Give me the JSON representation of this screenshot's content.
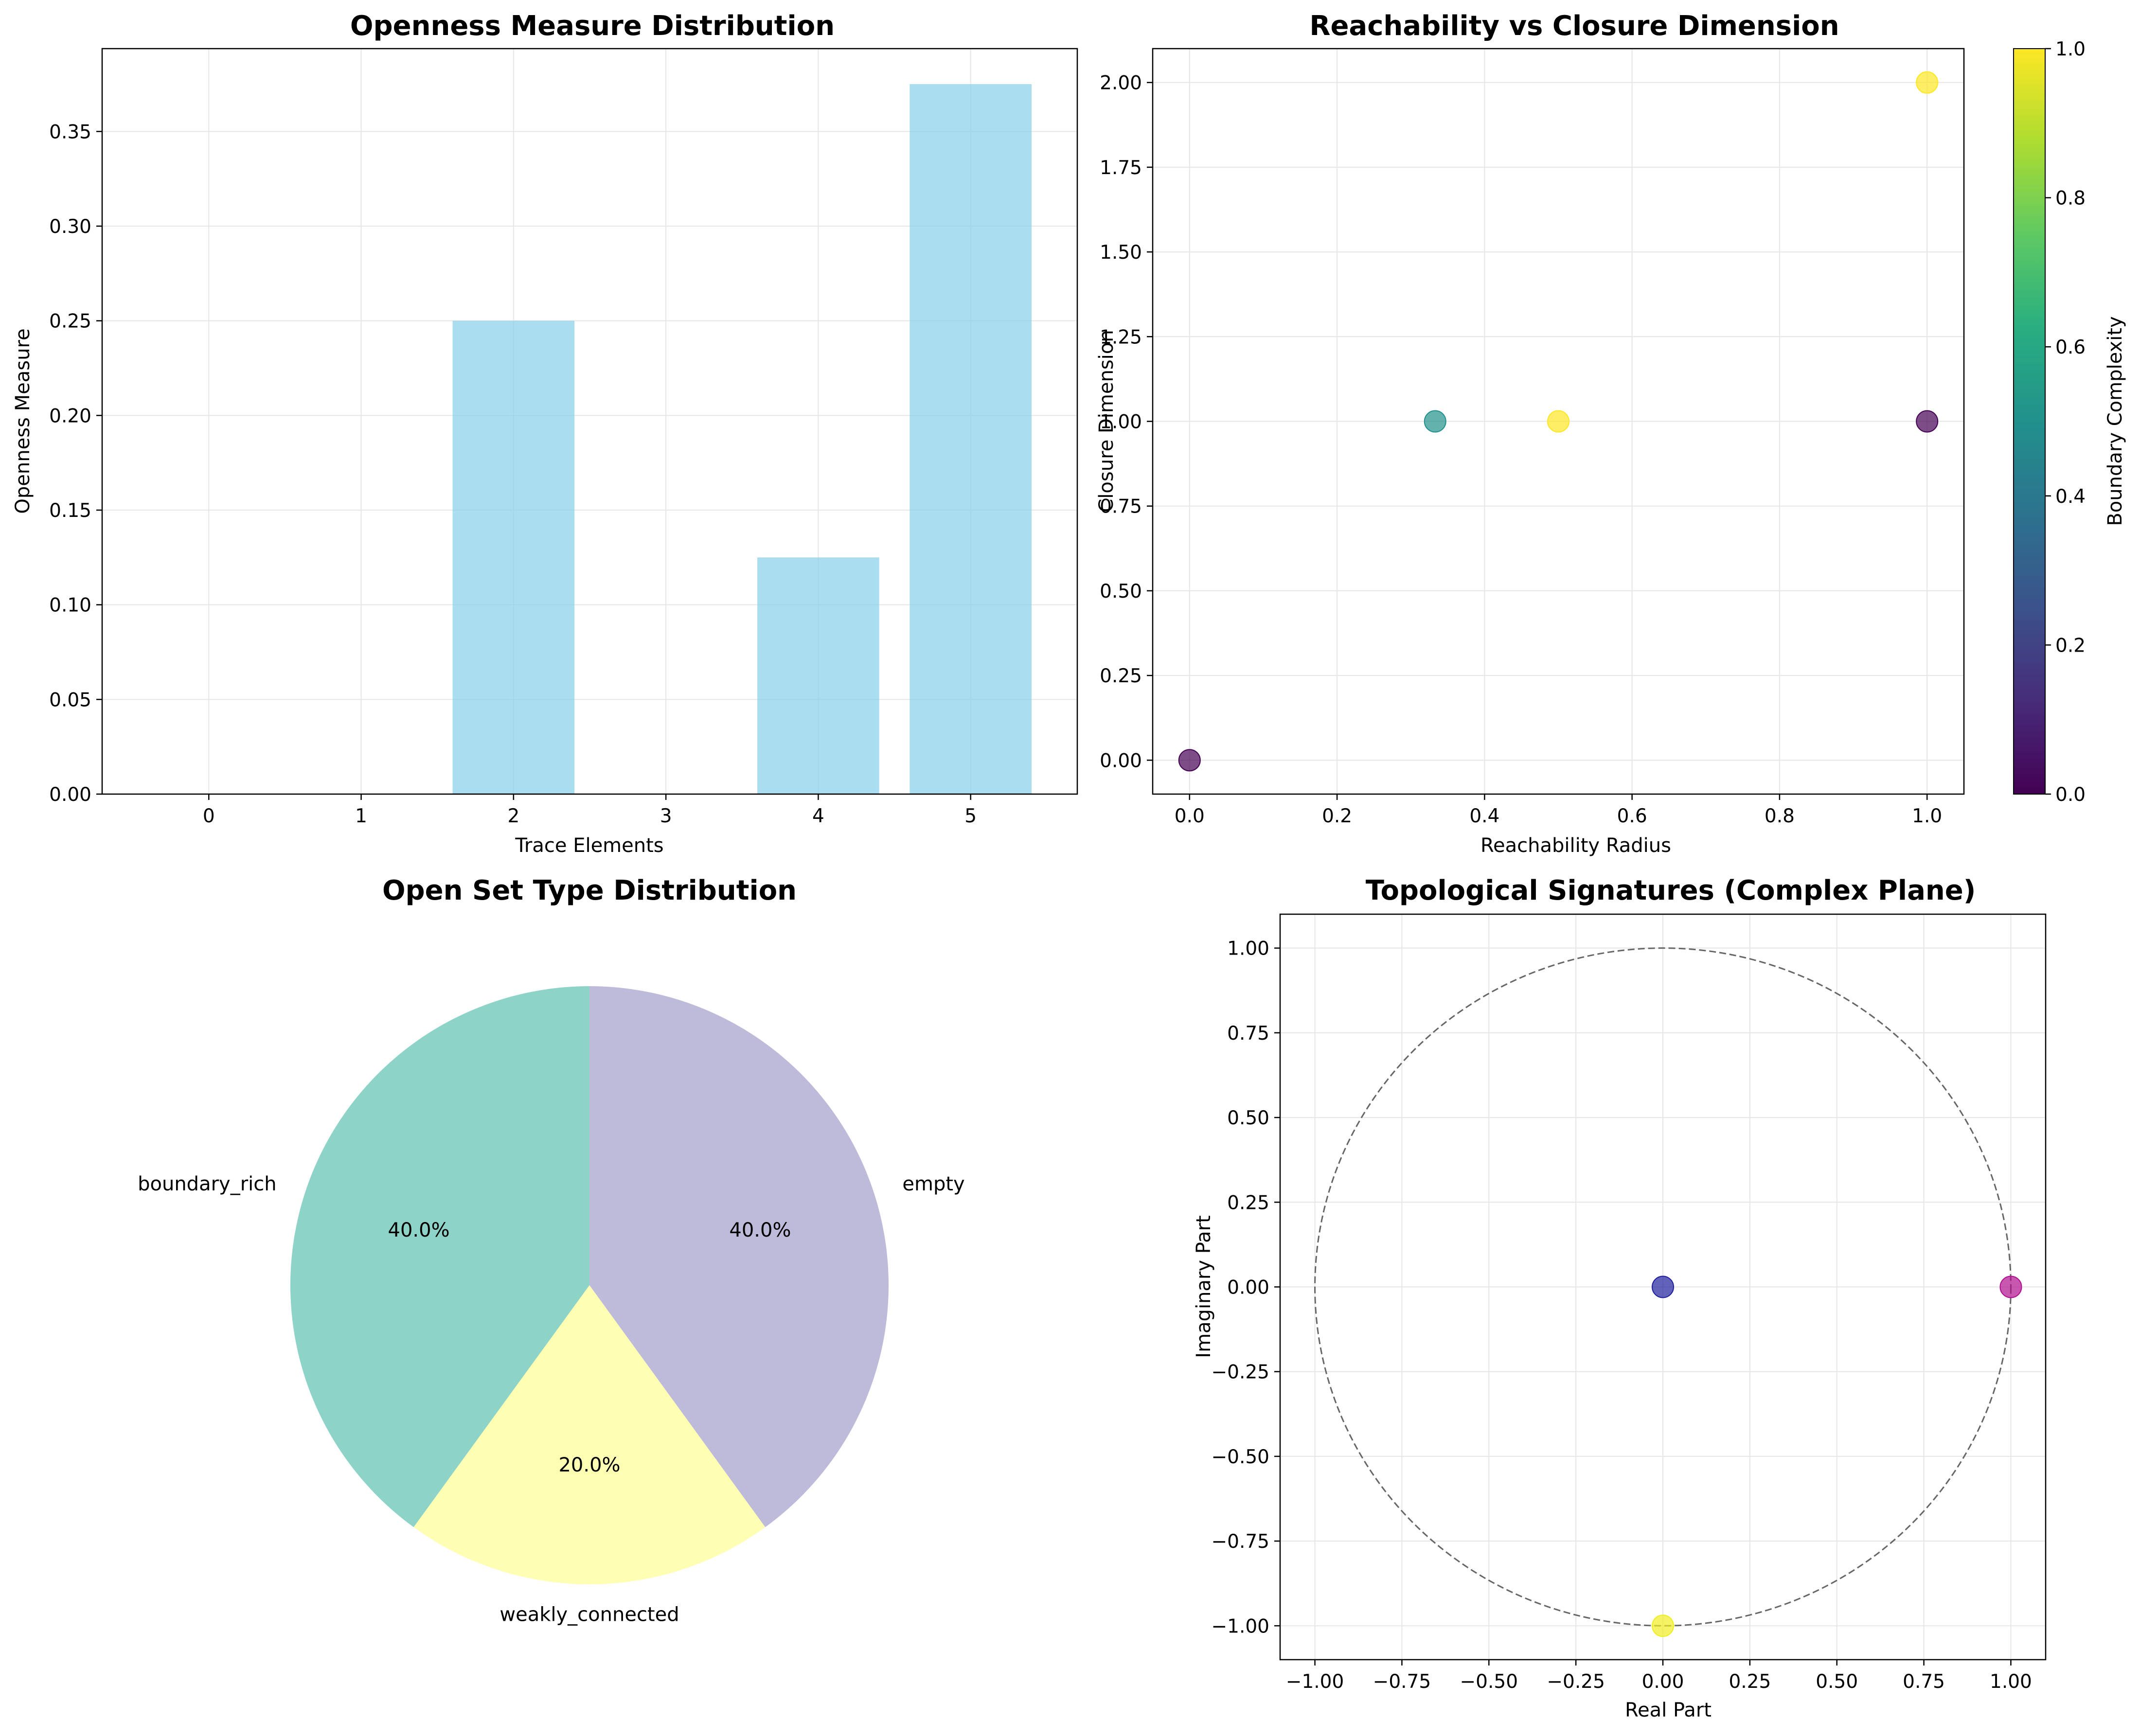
{
  "chart_data": [
    {
      "type": "bar",
      "title": "Openness Measure Distribution",
      "xlabel": "Trace Elements",
      "ylabel": "Openness Measure",
      "categories": [
        "0",
        "1",
        "2",
        "3",
        "4",
        "5"
      ],
      "values": [
        0,
        0,
        0.25,
        0,
        0.125,
        0.375
      ],
      "ylim": [
        0,
        0.39375
      ],
      "xlim": [
        -0.7,
        5.7
      ],
      "yticks": [
        "0.00",
        "0.05",
        "0.10",
        "0.15",
        "0.20",
        "0.25",
        "0.30",
        "0.35"
      ],
      "bar_color": "#87ceeb",
      "grid": true
    },
    {
      "type": "scatter",
      "title": "Reachability vs Closure Dimension",
      "xlabel": "Reachability Radius",
      "ylabel": "Closure Dimension",
      "colorbar_label": "Boundary Complexity",
      "points": [
        {
          "x": 0.0,
          "y": 0.0,
          "c": 0.0
        },
        {
          "x": 0.333,
          "y": 1.0,
          "c": 0.5
        },
        {
          "x": 0.5,
          "y": 1.0,
          "c": 1.0
        },
        {
          "x": 1.0,
          "y": 1.0,
          "c": 0.0
        },
        {
          "x": 1.0,
          "y": 2.0,
          "c": 1.0
        }
      ],
      "xlim": [
        -0.05,
        1.05
      ],
      "ylim": [
        -0.1,
        2.1
      ],
      "xticks": [
        "0.0",
        "0.2",
        "0.4",
        "0.6",
        "0.8",
        "1.0"
      ],
      "yticks": [
        "0.00",
        "0.25",
        "0.50",
        "0.75",
        "1.00",
        "1.25",
        "1.50",
        "1.75",
        "2.00"
      ],
      "colorbar_ticks": [
        "0.0",
        "0.2",
        "0.4",
        "0.6",
        "0.8",
        "1.0"
      ],
      "colormap": "viridis",
      "grid": true
    },
    {
      "type": "pie",
      "title": "Open Set Type Distribution",
      "slices": [
        {
          "label": "boundary_rich",
          "value": 40.0,
          "pct": "40.0%",
          "color": "#8dd3c7"
        },
        {
          "label": "weakly_connected",
          "value": 20.0,
          "pct": "20.0%",
          "color": "#ffffb3"
        },
        {
          "label": "empty",
          "value": 40.0,
          "pct": "40.0%",
          "color": "#bebada"
        }
      ]
    },
    {
      "type": "scatter",
      "title": "Topological Signatures (Complex Plane)",
      "xlabel": "Real Part",
      "ylabel": "Imaginary Part",
      "points": [
        {
          "x": 0.0,
          "y": 0.0,
          "color": "#1f1f9e"
        },
        {
          "x": 1.0,
          "y": 0.0,
          "color": "#b0108f"
        },
        {
          "x": 0.0,
          "y": -1.0,
          "color": "#eeee22"
        }
      ],
      "unit_circle": true,
      "xlim": [
        -1.1,
        1.1
      ],
      "ylim": [
        -1.1,
        1.1
      ],
      "xticks": [
        "−1.00",
        "−0.75",
        "−0.50",
        "−0.25",
        "0.00",
        "0.25",
        "0.50",
        "0.75",
        "1.00"
      ],
      "yticks": [
        "−1.00",
        "−0.75",
        "−0.50",
        "−0.25",
        "0.00",
        "0.25",
        "0.50",
        "0.75",
        "1.00"
      ],
      "grid": true
    }
  ]
}
